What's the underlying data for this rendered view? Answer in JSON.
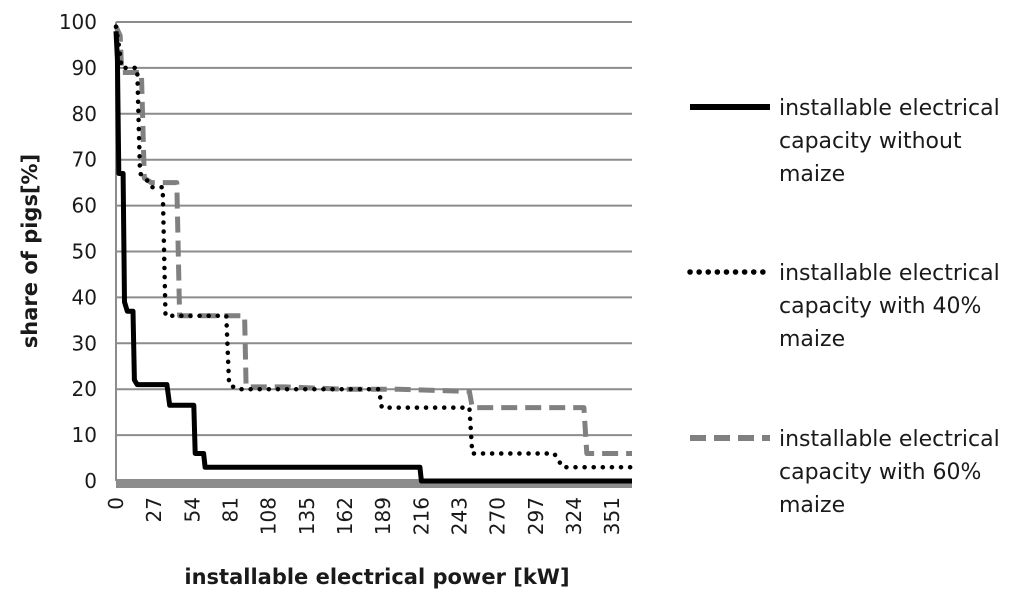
{
  "chart_data": {
    "type": "line",
    "xlabel": "installable electrical power [kW]",
    "ylabel": "share of pigs[%]",
    "xlim": [
      0,
      365
    ],
    "ylim": [
      0,
      100
    ],
    "x_ticks": [
      0,
      27,
      54,
      81,
      108,
      135,
      162,
      189,
      216,
      243,
      270,
      297,
      324,
      351
    ],
    "y_ticks": [
      0,
      10,
      20,
      30,
      40,
      50,
      60,
      70,
      80,
      90,
      100
    ],
    "grid": true,
    "legend_position": "right",
    "series": [
      {
        "name": "installable electrical capacity without maize",
        "style": "solid",
        "color": "#000000",
        "points": [
          [
            0,
            98
          ],
          [
            1,
            92
          ],
          [
            2,
            67
          ],
          [
            5,
            67
          ],
          [
            6,
            39
          ],
          [
            8,
            37
          ],
          [
            12,
            37
          ],
          [
            13,
            22
          ],
          [
            15,
            21
          ],
          [
            20,
            21
          ],
          [
            26,
            21
          ],
          [
            36,
            21
          ],
          [
            38,
            16.5
          ],
          [
            44,
            16.5
          ],
          [
            55,
            16.5
          ],
          [
            56,
            6
          ],
          [
            62,
            6
          ],
          [
            63,
            3
          ],
          [
            80,
            3
          ],
          [
            120,
            3
          ],
          [
            150,
            3
          ],
          [
            155,
            3
          ],
          [
            200,
            3
          ],
          [
            215,
            3
          ],
          [
            216,
            0
          ],
          [
            260,
            0
          ],
          [
            300,
            0
          ],
          [
            365,
            0
          ]
        ]
      },
      {
        "name": "installable electrical capacity with 40% maize",
        "style": "dotted",
        "color": "#000000",
        "points": [
          [
            0,
            99
          ],
          [
            2,
            95
          ],
          [
            4,
            90
          ],
          [
            15,
            90
          ],
          [
            17,
            67
          ],
          [
            21,
            66
          ],
          [
            25,
            64
          ],
          [
            33,
            64
          ],
          [
            35,
            36
          ],
          [
            42,
            36
          ],
          [
            78,
            36
          ],
          [
            80,
            21
          ],
          [
            86,
            20
          ],
          [
            110,
            20
          ],
          [
            140,
            20
          ],
          [
            160,
            20
          ],
          [
            186,
            20
          ],
          [
            188,
            16
          ],
          [
            220,
            16
          ],
          [
            250,
            16
          ],
          [
            252,
            6
          ],
          [
            280,
            6
          ],
          [
            310,
            6
          ],
          [
            312,
            5
          ],
          [
            316,
            3
          ],
          [
            340,
            3
          ],
          [
            365,
            3
          ]
        ]
      },
      {
        "name": "installable electrical capacity with 60% maize",
        "style": "dashed",
        "color": "#808080",
        "points": [
          [
            0,
            99
          ],
          [
            3,
            97
          ],
          [
            4,
            89
          ],
          [
            18,
            89
          ],
          [
            20,
            66
          ],
          [
            25,
            65
          ],
          [
            43,
            65
          ],
          [
            45,
            36
          ],
          [
            55,
            36
          ],
          [
            91,
            36
          ],
          [
            92,
            20.5
          ],
          [
            120,
            20.5
          ],
          [
            160,
            20
          ],
          [
            200,
            20
          ],
          [
            250,
            19.5
          ],
          [
            252,
            16
          ],
          [
            300,
            16
          ],
          [
            331,
            16
          ],
          [
            333,
            6
          ],
          [
            365,
            6
          ]
        ]
      }
    ],
    "legend": {
      "entries": [
        [
          "installable electrical",
          "capacity without",
          "maize"
        ],
        [
          "installable electrical",
          "capacity with 40%",
          "maize"
        ],
        [
          "installable electrical",
          "capacity with 60%",
          "maize"
        ]
      ]
    }
  }
}
